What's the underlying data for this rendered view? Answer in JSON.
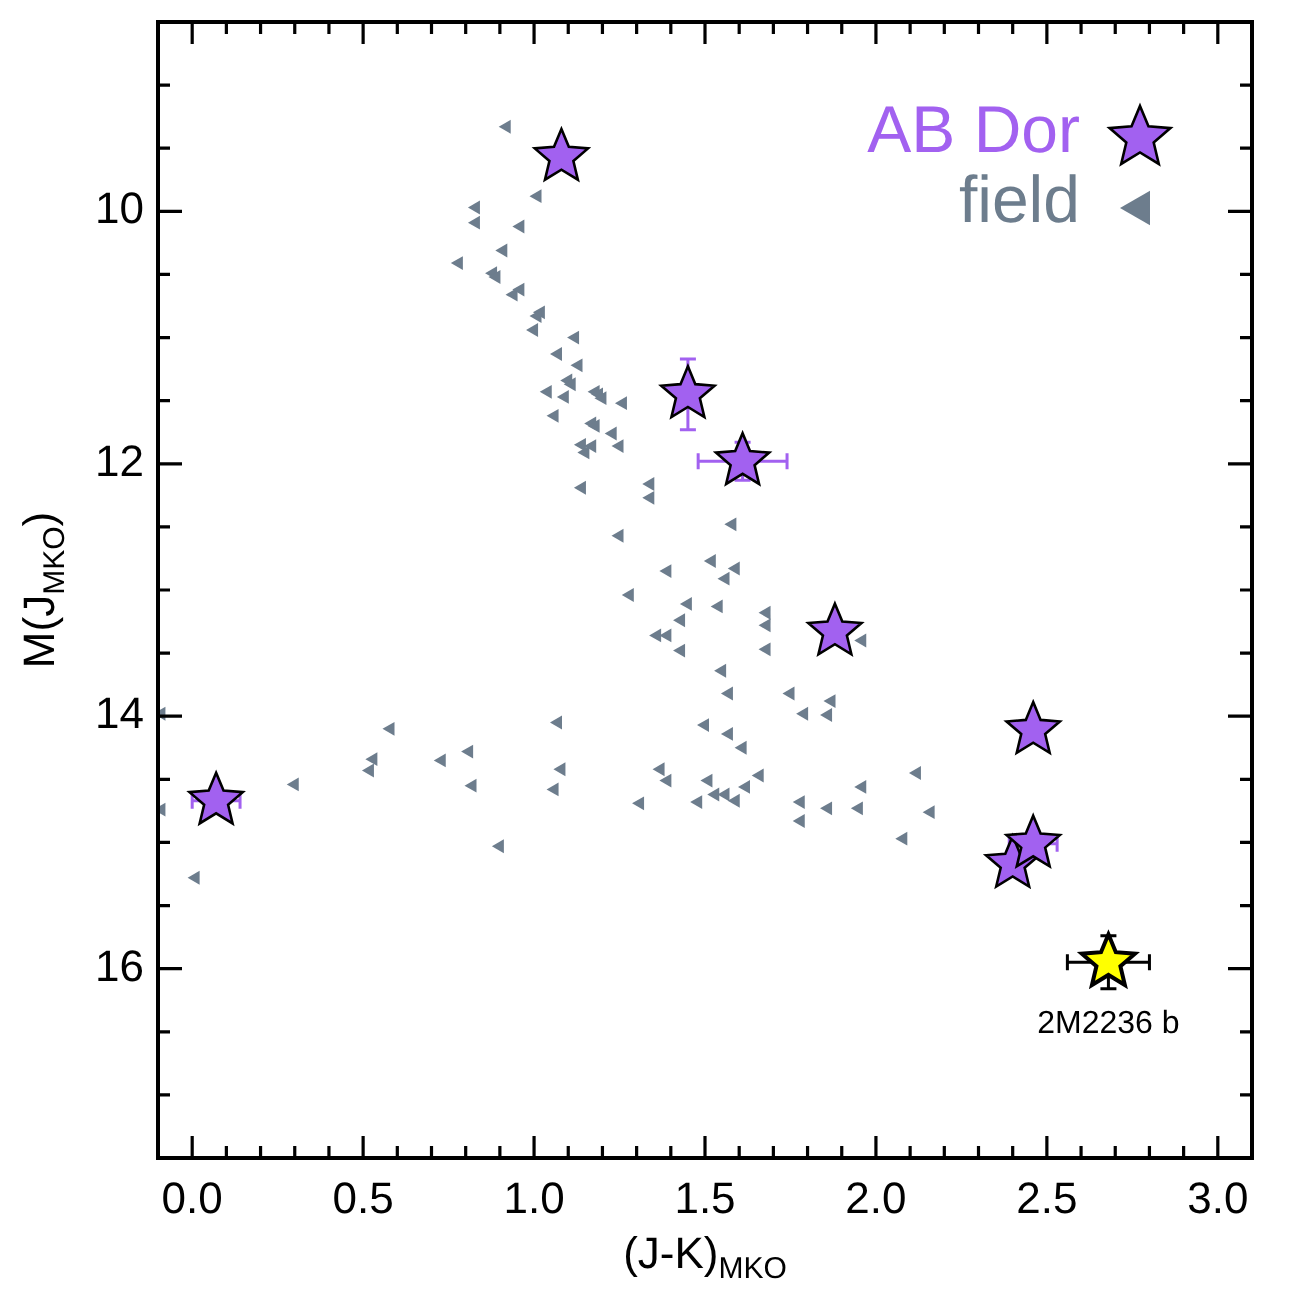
{
  "chart_data": {
    "type": "scatter",
    "xlabel": "(J-K)$_{MKO}$",
    "ylabel": "M(J$_{MKO}$)",
    "xlim": [
      -0.1,
      3.1
    ],
    "ylim": [
      17.5,
      8.5
    ],
    "xticks": [
      {
        "value": 0,
        "label": "0.0"
      },
      {
        "value": 0.1,
        "label": null
      },
      {
        "value": 0.2,
        "label": null
      },
      {
        "value": 0.3,
        "label": null
      },
      {
        "value": 0.4,
        "label": null
      },
      {
        "value": 0.5,
        "label": "0.5"
      },
      {
        "value": 0.6,
        "label": null
      },
      {
        "value": 0.7,
        "label": null
      },
      {
        "value": 0.8,
        "label": null
      },
      {
        "value": 0.9,
        "label": null
      },
      {
        "value": 1,
        "label": "1.0"
      },
      {
        "value": 1.1,
        "label": null
      },
      {
        "value": 1.2,
        "label": null
      },
      {
        "value": 1.3,
        "label": null
      },
      {
        "value": 1.4,
        "label": null
      },
      {
        "value": 1.5,
        "label": "1.5"
      },
      {
        "value": 1.6,
        "label": null
      },
      {
        "value": 1.7,
        "label": null
      },
      {
        "value": 1.8,
        "label": null
      },
      {
        "value": 1.9,
        "label": null
      },
      {
        "value": 2,
        "label": "2.0"
      },
      {
        "value": 2.1,
        "label": null
      },
      {
        "value": 2.2,
        "label": null
      },
      {
        "value": 2.3,
        "label": null
      },
      {
        "value": 2.4,
        "label": null
      },
      {
        "value": 2.5,
        "label": "2.5"
      },
      {
        "value": 2.6,
        "label": null
      },
      {
        "value": 2.7,
        "label": null
      },
      {
        "value": 2.8,
        "label": null
      },
      {
        "value": 2.9,
        "label": null
      },
      {
        "value": 3,
        "label": "3.0"
      }
    ],
    "yticks": [
      {
        "value": 9,
        "label": null
      },
      {
        "value": 9.5,
        "label": null
      },
      10,
      {
        "value": 10.5,
        "label": null
      },
      {
        "value": 11,
        "label": null
      },
      {
        "value": 11.5,
        "label": null
      },
      12,
      {
        "value": 12.5,
        "label": null
      },
      {
        "value": 13,
        "label": null
      },
      {
        "value": 13.5,
        "label": null
      },
      14,
      {
        "value": 14.5,
        "label": null
      },
      {
        "value": 15,
        "label": null
      },
      {
        "value": 15.5,
        "label": null
      },
      16,
      {
        "value": 16.5,
        "label": null
      },
      {
        "value": 17,
        "label": null
      }
    ],
    "legend": "top right",
    "annotations": [
      {
        "text": "2M2236 b",
        "x": 2.68,
        "y": 15.95
      }
    ],
    "series": [
      {
        "name": "AB Dor",
        "type": "scatter",
        "marker": "star",
        "color": "#a261f0",
        "x": [
          1.08,
          1.45,
          1.61,
          1.88,
          2.46,
          0.07,
          2.4,
          2.46
        ],
        "values": [
          9.57,
          11.45,
          11.98,
          13.33,
          14.11,
          14.67,
          15.17,
          15.01
        ],
        "errors": [
          null,
          0.28,
          0.15,
          null,
          null,
          null,
          null,
          null
        ],
        "xerrors": [
          null,
          null,
          0.13,
          null,
          null,
          0.07,
          null,
          0.07
        ]
      },
      {
        "name": "field",
        "type": "scatter",
        "marker": "triangle",
        "color": "#6d7d8d",
        "x": [
          0.92,
          1.01,
          0.83,
          0.83,
          0.96,
          0.91,
          0.78,
          0.88,
          0.89,
          0.94,
          0.96,
          1.02,
          1.01,
          1.0,
          1.12,
          1.07,
          1.13,
          1.1,
          1.11,
          1.04,
          1.09,
          1.18,
          1.19,
          1.2,
          1.26,
          1.06,
          1.17,
          1.18,
          1.23,
          1.14,
          1.17,
          1.15,
          1.25,
          1.14,
          1.34,
          1.34,
          1.58,
          1.25,
          1.39,
          1.52,
          1.59,
          1.56,
          1.28,
          1.45,
          1.54,
          1.43,
          1.36,
          1.39,
          1.43,
          1.55,
          1.57,
          -0.09,
          0.58,
          1.07,
          1.5,
          1.57,
          1.61,
          0.53,
          0.52,
          0.73,
          0.81,
          1.08,
          1.37,
          1.39,
          1.51,
          0.3,
          0.82,
          1.06,
          1.31,
          1.48,
          1.53,
          1.56,
          1.59,
          1.62,
          -0.09,
          0.9,
          0.01,
          1.68,
          1.68,
          1.68,
          1.96,
          1.75,
          1.87,
          1.79,
          1.86,
          1.66,
          2.12,
          1.96,
          1.78,
          1.78,
          1.86,
          1.95,
          2.16,
          2.08
        ],
        "values": [
          9.33,
          9.88,
          9.97,
          10.09,
          10.12,
          10.31,
          10.41,
          10.49,
          10.52,
          10.66,
          10.62,
          10.8,
          10.83,
          10.94,
          11.0,
          11.13,
          11.22,
          11.34,
          11.37,
          11.43,
          11.47,
          11.43,
          11.45,
          11.48,
          11.52,
          11.62,
          11.68,
          11.7,
          11.76,
          11.85,
          11.86,
          11.91,
          11.86,
          12.19,
          12.16,
          12.27,
          12.48,
          12.57,
          12.85,
          12.77,
          12.83,
          12.91,
          13.04,
          13.11,
          13.13,
          13.24,
          13.36,
          13.36,
          13.48,
          13.64,
          13.82,
          13.98,
          14.1,
          14.05,
          14.07,
          14.14,
          14.25,
          14.34,
          14.43,
          14.35,
          14.28,
          14.42,
          14.42,
          14.51,
          14.51,
          14.54,
          14.55,
          14.58,
          14.69,
          14.68,
          14.62,
          14.62,
          14.67,
          14.56,
          14.74,
          15.03,
          15.28,
          13.18,
          13.28,
          13.47,
          13.4,
          13.82,
          13.88,
          13.98,
          13.99,
          14.47,
          14.45,
          14.56,
          14.68,
          14.83,
          14.73,
          14.73,
          14.76,
          14.97
        ]
      },
      {
        "type": "scatter",
        "marker": "star",
        "color": "#ffff00",
        "x": [
          2.68
        ],
        "values": [
          15.95
        ],
        "errors": [
          0.21
        ],
        "xerrors": [
          0.12
        ]
      }
    ]
  }
}
